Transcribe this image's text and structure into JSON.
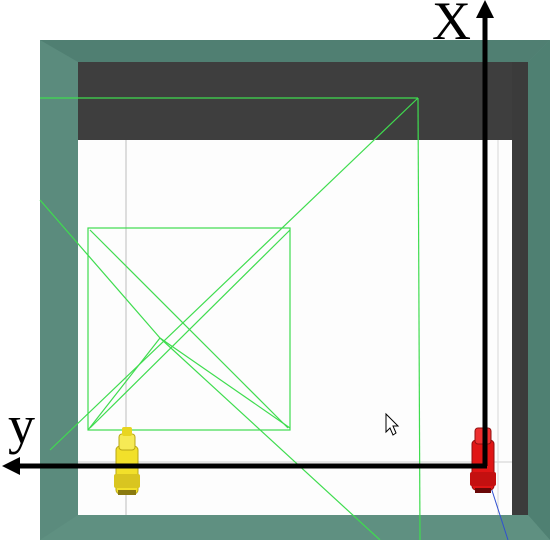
{
  "axes": {
    "x_label": "X",
    "y_label": "y"
  },
  "colors": {
    "arena_wall": "#5d8f80",
    "arena_wall_dark": "#4a7a6c",
    "back_wall": "#3f3f3f",
    "floor": "#fdfdfd",
    "trajectory": "#3fdc4f",
    "axis": "#000000",
    "robot_yellow": "#f2e02a",
    "robot_red": "#e01515",
    "cursor": "#ffffff"
  },
  "icons": {
    "cursor": "arrow-pointer-icon",
    "robot_left": "yellow-robot-icon",
    "robot_right": "red-robot-icon"
  }
}
